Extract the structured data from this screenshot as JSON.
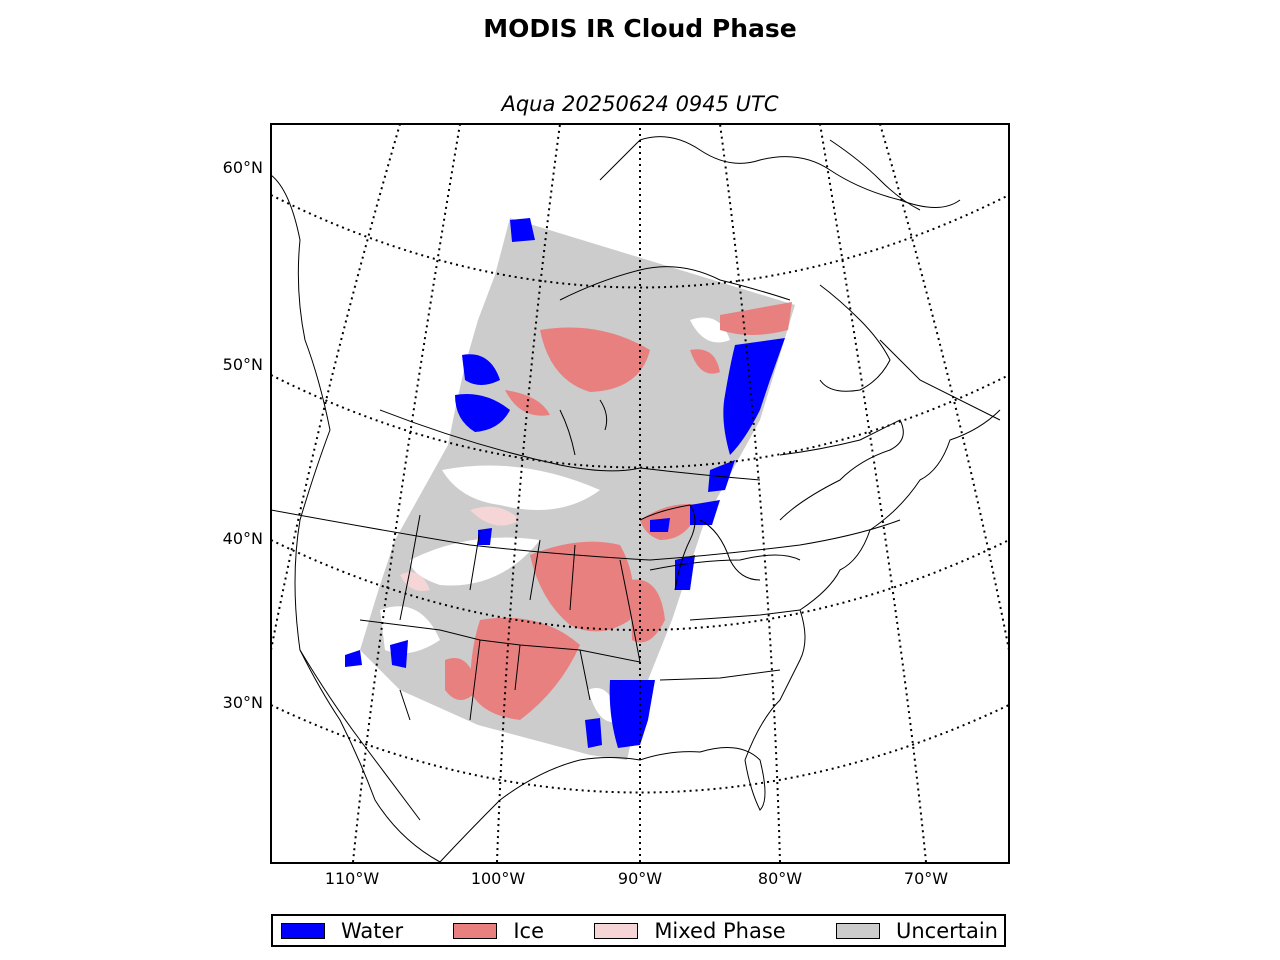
{
  "title": "MODIS IR Cloud Phase",
  "subtitle": "Aqua 20250624 0945 UTC",
  "latitude_labels": [
    "60°N",
    "50°N",
    "40°N",
    "30°N"
  ],
  "longitude_labels": [
    "110°W",
    "100°W",
    "90°W",
    "80°W",
    "70°W"
  ],
  "legend": [
    {
      "label": "Water",
      "color": "#0000ff"
    },
    {
      "label": "Ice",
      "color": "#e88080"
    },
    {
      "label": "Mixed Phase",
      "color": "#f5d5d5"
    },
    {
      "label": "Uncertain",
      "color": "#cccccc"
    }
  ]
}
